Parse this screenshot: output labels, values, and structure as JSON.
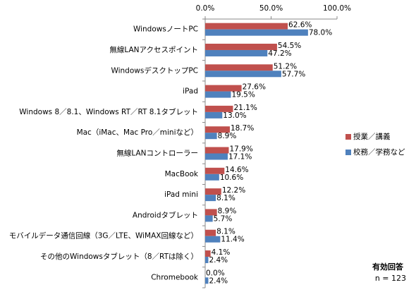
{
  "chart_data": {
    "type": "hbar",
    "categories": [
      "WindowsノートPC",
      "無線LANアクセスポイント",
      "WindowsデスクトップPC",
      "iPad",
      "Windows 8／8.1、Windows RT／RT 8.1タブレット",
      "Mac（iMac、Mac Pro／miniなど）",
      "無線LANコントローラー",
      "MacBook",
      "iPad mini",
      "Androidタブレット",
      "モバイルデータ通信回線（3G／LTE、WiMAX回線など）",
      "その他のWindowsタブレット（8／RTは除く）",
      "Chromebook"
    ],
    "series": [
      {
        "name": "授業／講義",
        "color": "#c0504d",
        "values": [
          62.6,
          54.5,
          51.2,
          27.6,
          21.1,
          18.7,
          17.9,
          14.6,
          12.2,
          8.9,
          8.1,
          4.1,
          0.0
        ],
        "value_labels": [
          "62.6%",
          "54.5%",
          "51.2%",
          "27.6%",
          "21.1%",
          "18.7%",
          "17.9%",
          "14.6%",
          "12.2%",
          "8.9%",
          "8.1%",
          "4.1%",
          "0.0%"
        ]
      },
      {
        "name": "校務／学務など",
        "color": "#4f81bd",
        "values": [
          78.0,
          47.2,
          57.7,
          19.5,
          13.0,
          8.9,
          17.1,
          10.6,
          8.1,
          5.7,
          11.4,
          2.4,
          2.4
        ],
        "value_labels": [
          "78.0%",
          "47.2%",
          "57.7%",
          "19.5%",
          "13.0%",
          "8.9%",
          "17.1%",
          "10.6%",
          "8.1%",
          "5.7%",
          "11.4%",
          "2.4%",
          "2.4%"
        ]
      }
    ],
    "xlim": [
      0,
      100
    ],
    "xticks": [
      {
        "value": 0,
        "label": "0.0%"
      },
      {
        "value": 50,
        "label": "50.0%"
      },
      {
        "value": 100,
        "label": "100.0%"
      }
    ],
    "legend": "right",
    "annotations": [
      "有効回答",
      "n = 123"
    ]
  }
}
